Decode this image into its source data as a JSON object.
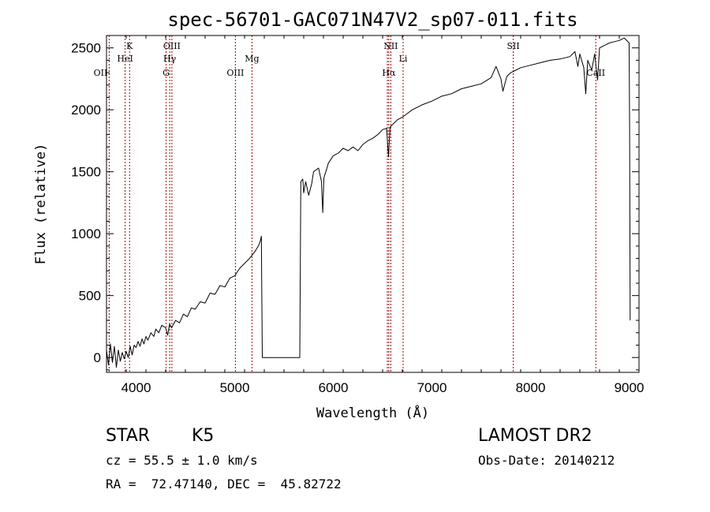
{
  "chart_data": {
    "type": "line",
    "title": "spec-56701-GAC071N47V2_sp07-011.fits",
    "xlabel": "Wavelength (Å)",
    "ylabel": "Flux (relative)",
    "xlim": [
      3700,
      9100
    ],
    "ylim": [
      -120,
      2600
    ],
    "x_ticks": [
      4000,
      5000,
      6000,
      7000,
      8000,
      9000
    ],
    "y_ticks": [
      0,
      500,
      1000,
      1500,
      2000,
      2500
    ],
    "grid": false,
    "series": [
      {
        "points": [
          [
            3700,
            60
          ],
          [
            3720,
            -60
          ],
          [
            3740,
            110
          ],
          [
            3760,
            -40
          ],
          [
            3780,
            90
          ],
          [
            3800,
            -80
          ],
          [
            3820,
            60
          ],
          [
            3840,
            -30
          ],
          [
            3860,
            40
          ],
          [
            3880,
            -10
          ],
          [
            3900,
            50
          ],
          [
            3920,
            0
          ],
          [
            3940,
            90
          ],
          [
            3960,
            20
          ],
          [
            3980,
            100
          ],
          [
            4000,
            80
          ],
          [
            4020,
            130
          ],
          [
            4040,
            90
          ],
          [
            4060,
            150
          ],
          [
            4080,
            110
          ],
          [
            4100,
            170
          ],
          [
            4120,
            140
          ],
          [
            4150,
            200
          ],
          [
            4180,
            170
          ],
          [
            4200,
            230
          ],
          [
            4230,
            200
          ],
          [
            4260,
            260
          ],
          [
            4300,
            240
          ],
          [
            4320,
            180
          ],
          [
            4340,
            270
          ],
          [
            4360,
            240
          ],
          [
            4400,
            300
          ],
          [
            4440,
            280
          ],
          [
            4480,
            350
          ],
          [
            4520,
            330
          ],
          [
            4560,
            400
          ],
          [
            4600,
            390
          ],
          [
            4650,
            450
          ],
          [
            4700,
            440
          ],
          [
            4750,
            520
          ],
          [
            4800,
            510
          ],
          [
            4850,
            580
          ],
          [
            4900,
            570
          ],
          [
            4950,
            640
          ],
          [
            5000,
            660
          ],
          [
            5050,
            720
          ],
          [
            5100,
            760
          ],
          [
            5150,
            800
          ],
          [
            5200,
            850
          ],
          [
            5240,
            900
          ],
          [
            5260,
            940
          ],
          [
            5270,
            980
          ],
          [
            5280,
            0
          ],
          [
            5300,
            0
          ],
          [
            5400,
            0
          ],
          [
            5500,
            0
          ],
          [
            5600,
            0
          ],
          [
            5660,
            0
          ],
          [
            5670,
            1420
          ],
          [
            5690,
            1440
          ],
          [
            5700,
            1330
          ],
          [
            5720,
            1420
          ],
          [
            5750,
            1310
          ],
          [
            5780,
            1400
          ],
          [
            5800,
            1500
          ],
          [
            5850,
            1530
          ],
          [
            5880,
            1420
          ],
          [
            5893,
            1170
          ],
          [
            5905,
            1450
          ],
          [
            5950,
            1570
          ],
          [
            6000,
            1630
          ],
          [
            6050,
            1650
          ],
          [
            6100,
            1690
          ],
          [
            6150,
            1670
          ],
          [
            6200,
            1700
          ],
          [
            6250,
            1670
          ],
          [
            6300,
            1720
          ],
          [
            6350,
            1750
          ],
          [
            6400,
            1770
          ],
          [
            6450,
            1800
          ],
          [
            6500,
            1840
          ],
          [
            6540,
            1850
          ],
          [
            6560,
            1620
          ],
          [
            6575,
            1860
          ],
          [
            6600,
            1880
          ],
          [
            6650,
            1920
          ],
          [
            6700,
            1940
          ],
          [
            6750,
            1970
          ],
          [
            6800,
            2000
          ],
          [
            6900,
            2040
          ],
          [
            7000,
            2070
          ],
          [
            7100,
            2110
          ],
          [
            7200,
            2130
          ],
          [
            7300,
            2170
          ],
          [
            7400,
            2190
          ],
          [
            7500,
            2210
          ],
          [
            7600,
            2260
          ],
          [
            7650,
            2350
          ],
          [
            7700,
            2250
          ],
          [
            7720,
            2150
          ],
          [
            7760,
            2270
          ],
          [
            7800,
            2300
          ],
          [
            7850,
            2320
          ],
          [
            7900,
            2340
          ],
          [
            8000,
            2360
          ],
          [
            8100,
            2380
          ],
          [
            8200,
            2400
          ],
          [
            8300,
            2410
          ],
          [
            8400,
            2430
          ],
          [
            8450,
            2470
          ],
          [
            8480,
            2350
          ],
          [
            8500,
            2450
          ],
          [
            8540,
            2340
          ],
          [
            8560,
            2130
          ],
          [
            8580,
            2400
          ],
          [
            8620,
            2320
          ],
          [
            8650,
            2450
          ],
          [
            8680,
            2240
          ],
          [
            8700,
            2500
          ],
          [
            8750,
            2520
          ],
          [
            8800,
            2540
          ],
          [
            8850,
            2550
          ],
          [
            8900,
            2560
          ],
          [
            8950,
            2580
          ],
          [
            9000,
            2540
          ],
          [
            9005,
            1850
          ],
          [
            9010,
            300
          ]
        ]
      }
    ],
    "lines": [
      {
        "x": 3727,
        "label": "OII",
        "row": 3,
        "align": "end"
      },
      {
        "x": 3889,
        "label": "HeI",
        "row": 2,
        "align": "middle"
      },
      {
        "x": 3934,
        "label": "K",
        "row": 1,
        "align": "middle"
      },
      {
        "x": 4304,
        "label": "G",
        "row": 3,
        "align": "middle"
      },
      {
        "x": 4341,
        "label": "Hγ",
        "row": 2,
        "align": "middle"
      },
      {
        "x": 4363,
        "label": "OIII",
        "row": 1,
        "align": "middle"
      },
      {
        "x": 5007,
        "label": "OIII",
        "row": 3,
        "align": "middle"
      },
      {
        "x": 5175,
        "label": "Mg",
        "row": 2,
        "align": "middle"
      },
      {
        "x": 6548,
        "label": "",
        "row": 0,
        "align": "middle"
      },
      {
        "x": 6563,
        "label": "Hα",
        "row": 3,
        "align": "middle"
      },
      {
        "x": 6583,
        "label": "NII",
        "row": 1,
        "align": "middle"
      },
      {
        "x": 6708,
        "label": "Li",
        "row": 2,
        "align": "middle"
      },
      {
        "x": 7825,
        "label": "SII",
        "row": 1,
        "align": "middle"
      },
      {
        "x": 8662,
        "label": "CaII",
        "row": 3,
        "align": "middle"
      }
    ],
    "colors": {
      "spectrum": "#000000",
      "lines": "#a00000"
    }
  },
  "info": {
    "class_label": "STAR",
    "subclass": "K5",
    "survey": "LAMOST DR2",
    "velocity": "cz = 55.5 ± 1.0 km/s",
    "obs_date": "Obs-Date: 20140212",
    "coords": "RA =  72.47140, DEC =  45.82722"
  }
}
